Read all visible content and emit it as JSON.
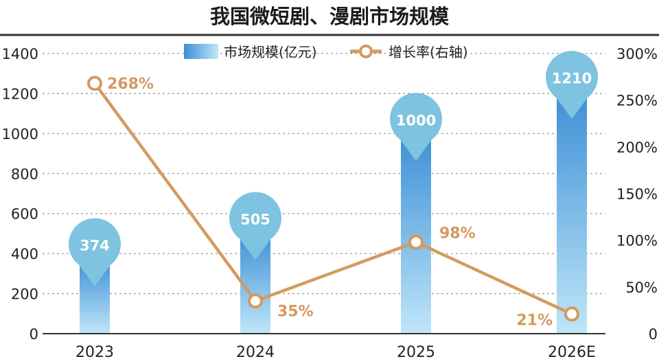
{
  "chart_data": {
    "type": "bar",
    "title": "我国微短剧、漫剧市场规模",
    "categories": [
      "2023",
      "2024",
      "2025",
      "2026E"
    ],
    "series": [
      {
        "name": "市场规模(亿元)",
        "type": "bar",
        "axis": "left",
        "values": [
          374,
          505,
          1000,
          1210
        ]
      },
      {
        "name": "增长率(右轴)",
        "type": "line",
        "axis": "right",
        "values": [
          268,
          35,
          98,
          21
        ],
        "value_labels": [
          "268%",
          "35%",
          "98%",
          "21%"
        ]
      }
    ],
    "ylim": [
      0,
      1400
    ],
    "y_ticks": [
      "0",
      "200",
      "400",
      "600",
      "800",
      "1000",
      "1200",
      "1400"
    ],
    "y2lim": [
      0,
      300
    ],
    "y2_ticks": [
      "0",
      "50%",
      "100%",
      "150%",
      "200%",
      "250%",
      "300%"
    ],
    "legend": [
      "市场规模(亿元)",
      "增长率(右轴)"
    ],
    "legend_position": "top-center",
    "grid": true,
    "colors": {
      "bar_top": "#3d8fd6",
      "bar_bottom": "#bfe6f8",
      "bubble": "#7ec3df",
      "line": "#d49a5f",
      "rule": "#333333",
      "grid": "#9a9a9a"
    }
  }
}
